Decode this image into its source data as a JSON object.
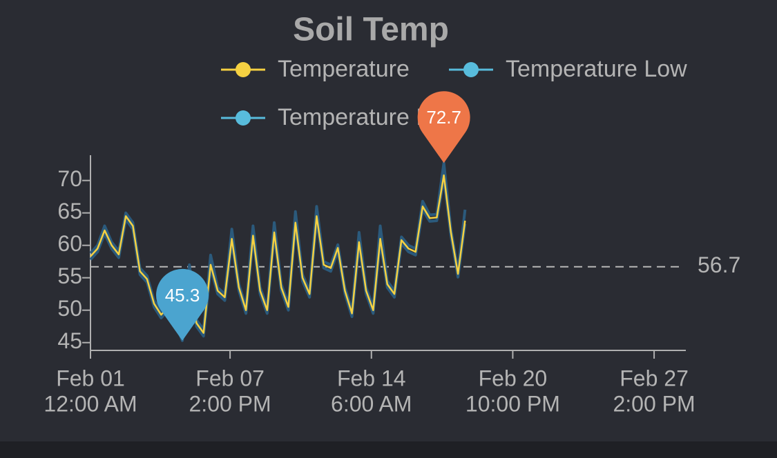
{
  "chart_data": {
    "type": "line",
    "title": "Soil Temp",
    "x": [
      "Feb 01 12:00 AM",
      "Feb 01 08:00 AM",
      "Feb 01 04:00 PM",
      "Feb 02 12:00 AM",
      "Feb 02 08:00 AM",
      "Feb 02 04:00 PM",
      "Feb 03 12:00 AM",
      "Feb 03 08:00 AM",
      "Feb 03 04:00 PM",
      "Feb 04 12:00 AM",
      "Feb 04 08:00 AM",
      "Feb 04 04:00 PM",
      "Feb 05 12:00 AM",
      "Feb 05 08:00 AM",
      "Feb 05 04:00 PM",
      "Feb 06 12:00 AM",
      "Feb 06 08:00 AM",
      "Feb 06 04:00 PM",
      "Feb 07 12:00 AM",
      "Feb 07 08:00 AM",
      "Feb 07 04:00 PM",
      "Feb 08 12:00 AM",
      "Feb 08 08:00 AM",
      "Feb 08 04:00 PM",
      "Feb 09 12:00 AM",
      "Feb 09 08:00 AM",
      "Feb 09 04:00 PM",
      "Feb 10 12:00 AM",
      "Feb 10 08:00 AM",
      "Feb 10 04:00 PM",
      "Feb 11 12:00 AM",
      "Feb 11 08:00 AM",
      "Feb 11 04:00 PM",
      "Feb 12 12:00 AM",
      "Feb 12 08:00 AM",
      "Feb 12 04:00 PM",
      "Feb 13 12:00 AM",
      "Feb 13 08:00 AM",
      "Feb 13 04:00 PM",
      "Feb 14 12:00 AM",
      "Feb 14 08:00 AM",
      "Feb 14 04:00 PM",
      "Feb 15 12:00 AM",
      "Feb 15 08:00 AM",
      "Feb 15 04:00 PM",
      "Feb 16 12:00 AM",
      "Feb 16 08:00 AM",
      "Feb 16 04:00 PM",
      "Feb 17 12:00 AM",
      "Feb 17 08:00 AM",
      "Feb 17 04:00 PM",
      "Feb 18 12:00 AM",
      "Feb 18 08:00 AM",
      "Feb 18 04:00 PM"
    ],
    "series": [
      {
        "name": "Temperature",
        "color": "#f5d142",
        "values": [
          58.3,
          59.5,
          62.3,
          60,
          58.6,
          64.5,
          63,
          56,
          54.8,
          51,
          49.3,
          50.5,
          48.5,
          45.9,
          55.5,
          48,
          46.5,
          57,
          53,
          52,
          61,
          53.5,
          50,
          61.5,
          53,
          50,
          62,
          53.5,
          50.5,
          63.5,
          55,
          52.5,
          64.5,
          57,
          56.5,
          59.6,
          53,
          49.5,
          60.5,
          53,
          50,
          61,
          54,
          52.5,
          60.8,
          59.5,
          59,
          66,
          64.2,
          64.3,
          70.8,
          62,
          55.6,
          63.8
        ]
      },
      {
        "name": "Temperature Low",
        "color": "#58bcdc",
        "band_color": "#2b5a7c",
        "values": [
          57.8,
          59,
          61.8,
          59.5,
          58.1,
          64,
          62.5,
          55.5,
          54.3,
          50.5,
          48.8,
          50,
          48,
          45.3,
          55,
          47.5,
          46,
          56.5,
          52.5,
          51.5,
          60.5,
          53,
          49.5,
          61,
          52.5,
          49.5,
          61.5,
          53,
          50,
          63,
          54.5,
          52,
          64,
          56.5,
          56,
          59.1,
          52.5,
          49,
          60,
          52.5,
          49.5,
          60.5,
          53.5,
          52,
          60.3,
          59,
          58.5,
          65.5,
          63.7,
          63.8,
          70.3,
          61.5,
          55.1,
          63.3
        ]
      },
      {
        "name": "Temperature High",
        "color": "#58bcdc",
        "band_color": "#2b5a7c",
        "values": [
          58.8,
          60,
          63,
          60.5,
          59.1,
          65,
          63.5,
          56.5,
          55.3,
          51.5,
          49.8,
          51,
          49,
          46.4,
          57,
          48.5,
          47,
          58.5,
          53.5,
          52.5,
          62.5,
          54,
          50.5,
          63,
          53.5,
          50.5,
          63.5,
          54,
          51,
          65.2,
          55.5,
          53,
          66,
          57.5,
          57,
          60.1,
          53.5,
          50,
          62,
          53.5,
          50.5,
          63,
          54.5,
          53,
          61.3,
          60,
          59.5,
          66.8,
          64.7,
          64.8,
          72.7,
          62.5,
          56.1,
          65.5
        ]
      }
    ],
    "xlim": [
      "Feb 01 12:00 AM",
      "Feb 28 10:00 PM"
    ],
    "xticks": [
      {
        "value": "Feb 01 12:00 AM",
        "label": [
          "Feb 01",
          "12:00 AM"
        ]
      },
      {
        "value": "Feb 07 02:00 PM",
        "label": [
          "Feb 07",
          "2:00 PM"
        ]
      },
      {
        "value": "Feb 14 06:00 AM",
        "label": [
          "Feb 14",
          "6:00 AM"
        ]
      },
      {
        "value": "Feb 20 10:00 PM",
        "label": [
          "Feb 20",
          "10:00 PM"
        ]
      },
      {
        "value": "Feb 27 02:00 PM",
        "label": [
          "Feb 27",
          "2:00 PM"
        ]
      }
    ],
    "ylim": [
      43.8,
      73.9
    ],
    "yticks": [
      45,
      50,
      55,
      60,
      65,
      70
    ],
    "mark_line": {
      "value": 56.7
    },
    "markers": [
      {
        "x": "Feb 17 04:00 PM",
        "value": 72.7,
        "color": "#ee7648"
      },
      {
        "x": "Feb 05 08:00 AM",
        "value": 45.3,
        "color": "#4ba4cf"
      }
    ]
  }
}
